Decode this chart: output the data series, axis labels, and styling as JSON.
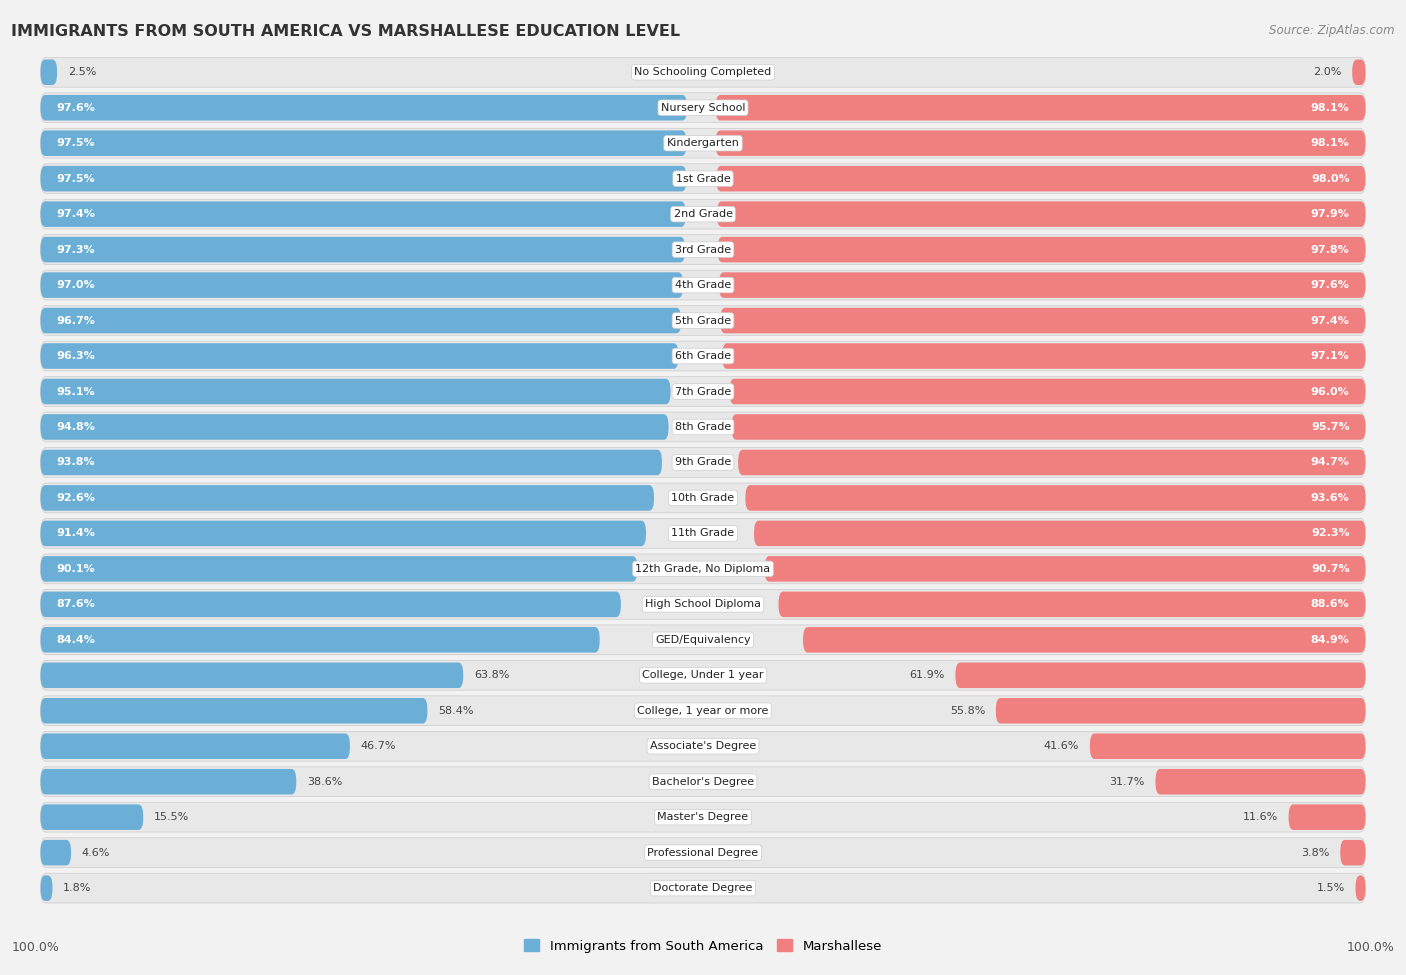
{
  "title": "IMMIGRANTS FROM SOUTH AMERICA VS MARSHALLESE EDUCATION LEVEL",
  "source": "Source: ZipAtlas.com",
  "categories": [
    "No Schooling Completed",
    "Nursery School",
    "Kindergarten",
    "1st Grade",
    "2nd Grade",
    "3rd Grade",
    "4th Grade",
    "5th Grade",
    "6th Grade",
    "7th Grade",
    "8th Grade",
    "9th Grade",
    "10th Grade",
    "11th Grade",
    "12th Grade, No Diploma",
    "High School Diploma",
    "GED/Equivalency",
    "College, Under 1 year",
    "College, 1 year or more",
    "Associate's Degree",
    "Bachelor's Degree",
    "Master's Degree",
    "Professional Degree",
    "Doctorate Degree"
  ],
  "left_values": [
    2.5,
    97.6,
    97.5,
    97.5,
    97.4,
    97.3,
    97.0,
    96.7,
    96.3,
    95.1,
    94.8,
    93.8,
    92.6,
    91.4,
    90.1,
    87.6,
    84.4,
    63.8,
    58.4,
    46.7,
    38.6,
    15.5,
    4.6,
    1.8
  ],
  "right_values": [
    2.0,
    98.1,
    98.1,
    98.0,
    97.9,
    97.8,
    97.6,
    97.4,
    97.1,
    96.0,
    95.7,
    94.7,
    93.6,
    92.3,
    90.7,
    88.6,
    84.9,
    61.9,
    55.8,
    41.6,
    31.7,
    11.6,
    3.8,
    1.5
  ],
  "left_color": "#6BAED6",
  "right_color": "#F08080",
  "row_bg_color": "#E8E8E8",
  "page_bg_color": "#F2F2F2",
  "legend_left": "Immigrants from South America",
  "legend_right": "Marshallese",
  "threshold_inside": 80.0
}
